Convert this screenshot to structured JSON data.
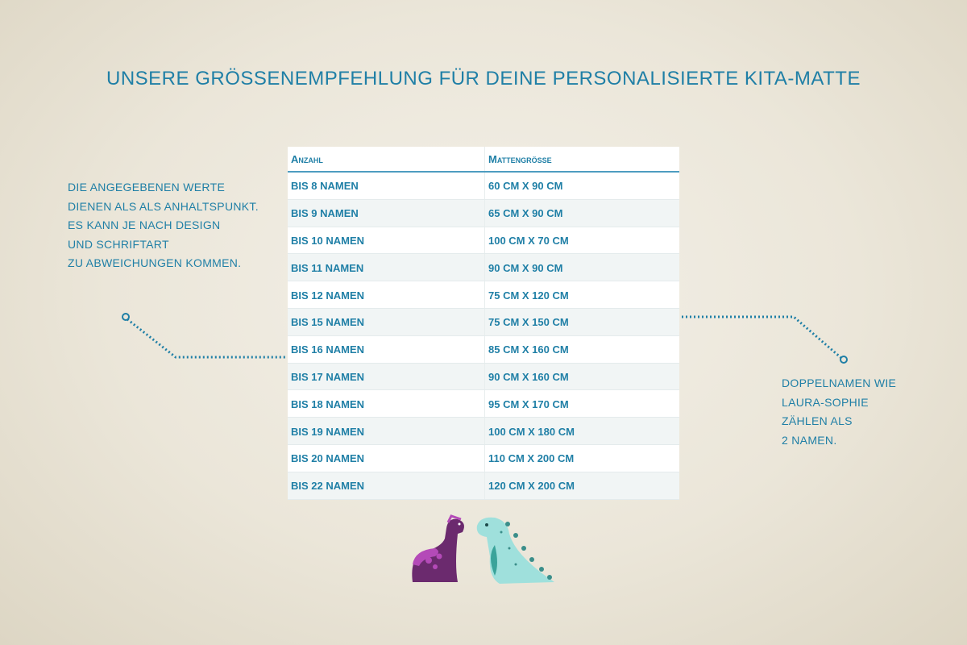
{
  "title": "Unsere Größenempfehlung für deine personalisierte Kita-Matte",
  "left_note": [
    "Die angegebenen Werte",
    "dienen als als Anhaltspunkt.",
    "Es kann je nach Design",
    "und Schriftart",
    "zu Abweichungen kommen."
  ],
  "right_note": [
    "Doppelnamen wie",
    "Laura-Sophie",
    "zählen als",
    "2 Namen."
  ],
  "table": {
    "headers": [
      "Anzahl",
      "Mattengröße"
    ],
    "rows": [
      [
        "bis 8 Namen",
        "60 cm x 90 cm"
      ],
      [
        "bis 9 Namen",
        "65 cm x 90 cm"
      ],
      [
        "bis 10 Namen",
        "100 cm x 70 cm"
      ],
      [
        "bis 11 Namen",
        "90 cm x 90 cm"
      ],
      [
        "bis 12 Namen",
        "75 cm x 120 cm"
      ],
      [
        "bis 15 Namen",
        "75 cm x 150 cm"
      ],
      [
        "bis 16 Namen",
        "85 cm x 160 cm"
      ],
      [
        "bis 17 Namen",
        "90 cm x 160 cm"
      ],
      [
        "bis 18 Namen",
        "95 cm x 170 cm"
      ],
      [
        "bis 19 Namen",
        "100 cm x 180 cm"
      ],
      [
        "bis 20 Namen",
        "110 cm x 200 cm"
      ],
      [
        "bis 22 Namen",
        "120 cm x 200 cm"
      ]
    ]
  },
  "colors": {
    "accent": "#1f7fa6",
    "dino_purple": "#6b2a6e",
    "dino_teal": "#9fe0dc"
  },
  "illustration": "two-dinosaurs"
}
